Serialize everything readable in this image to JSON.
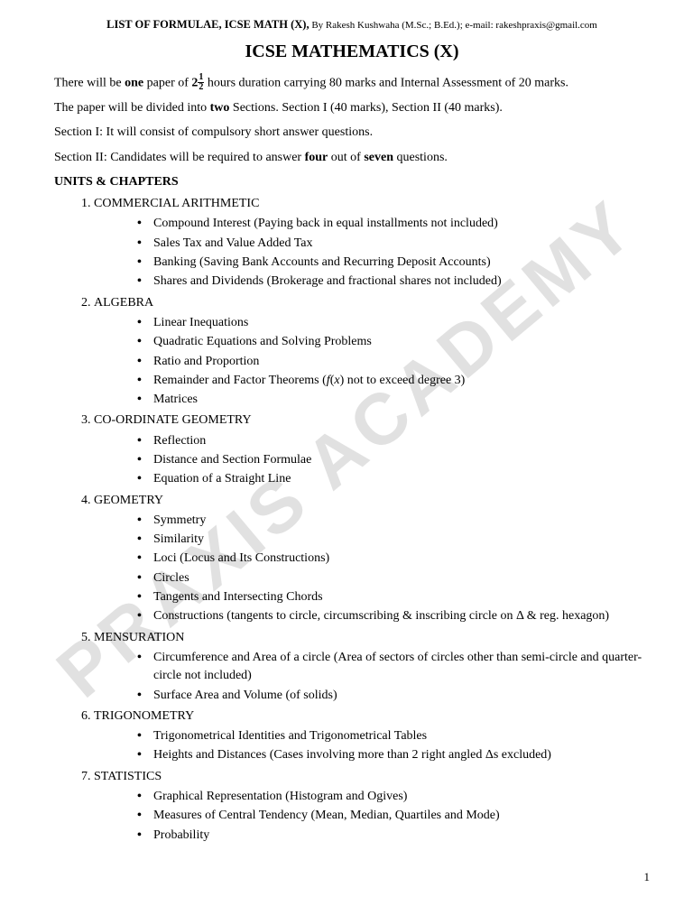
{
  "watermark": "PRAXIS ACADEMY",
  "header": {
    "title": "LIST OF FORMULAE, ICSE MATH (X),",
    "author": " By Rakesh Kushwaha (M.Sc.; B.Ed.); e-mail: rakeshpraxis@gmail.com"
  },
  "mainTitle": "ICSE MATHEMATICS (X)",
  "intro": {
    "p1a": "There will be ",
    "p1b": "one",
    "p1c": " paper of ",
    "p1d": "2",
    "p1_frac_top": "1",
    "p1_frac_bot": "2",
    "p1e": " hours duration carrying 80 marks and Internal Assessment of 20 marks.",
    "p2a": "The paper will be divided into ",
    "p2b": "two",
    "p2c": " Sections. Section I (40 marks), Section II (40 marks).",
    "p3": "Section I: It will consist of compulsory short answer questions.",
    "p4a": "Section II: Candidates will be required to answer ",
    "p4b": "four",
    "p4c": " out of ",
    "p4d": "seven",
    "p4e": " questions."
  },
  "unitsHeading": "UNITS & CHAPTERS",
  "units": [
    {
      "name": "COMMERCIAL ARITHMETIC",
      "subs": [
        "Compound Interest (Paying back in equal installments not included)",
        "Sales Tax and Value Added Tax",
        "Banking (Saving Bank Accounts and Recurring Deposit Accounts)",
        "Shares and Dividends (Brokerage and fractional shares not included)"
      ]
    },
    {
      "name": "ALGEBRA",
      "subs": [
        "Linear Inequations",
        "Quadratic Equations and Solving Problems",
        "Ratio and Proportion",
        "Remainder and Factor Theorems (f(x) not to exceed degree 3)",
        "Matrices"
      ],
      "styledIndex": 3
    },
    {
      "name": "CO-ORDINATE GEOMETRY",
      "subs": [
        "Reflection",
        "Distance and Section Formulae",
        "Equation of a Straight Line"
      ]
    },
    {
      "name": "GEOMETRY",
      "subs": [
        "Symmetry",
        "Similarity",
        "Loci (Locus and Its Constructions)",
        "Circles",
        "Tangents and Intersecting Chords",
        "Constructions (tangents to circle, circumscribing & inscribing circle on Δ & reg. hexagon)"
      ]
    },
    {
      "name": "MENSURATION",
      "subs": [
        "Circumference and Area of a circle (Area of sectors of circles other than semi-circle and quarter-circle not included)",
        "Surface Area and Volume (of solids)"
      ]
    },
    {
      "name": "TRIGONOMETRY",
      "subs": [
        "Trigonometrical Identities and Trigonometrical Tables",
        " Heights and Distances (Cases involving more than 2 right angled Δs excluded)"
      ]
    },
    {
      "name": "STATISTICS",
      "subs": [
        "Graphical Representation (Histogram and Ogives)",
        "Measures of Central Tendency (Mean, Median, Quartiles and Mode)",
        "Probability"
      ]
    }
  ],
  "pageNum": "1"
}
